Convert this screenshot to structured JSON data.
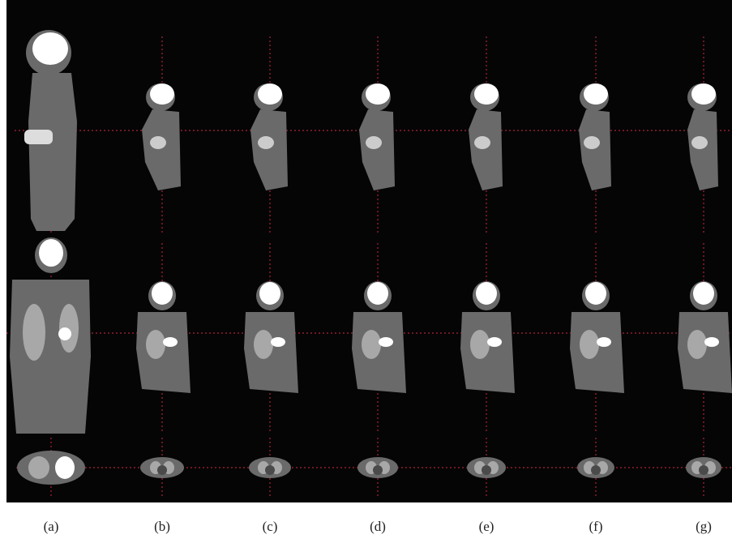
{
  "labels": [
    "(a)",
    "(b)",
    "(c)",
    "(d)",
    "(e)",
    "(f)",
    "(g)"
  ]
}
